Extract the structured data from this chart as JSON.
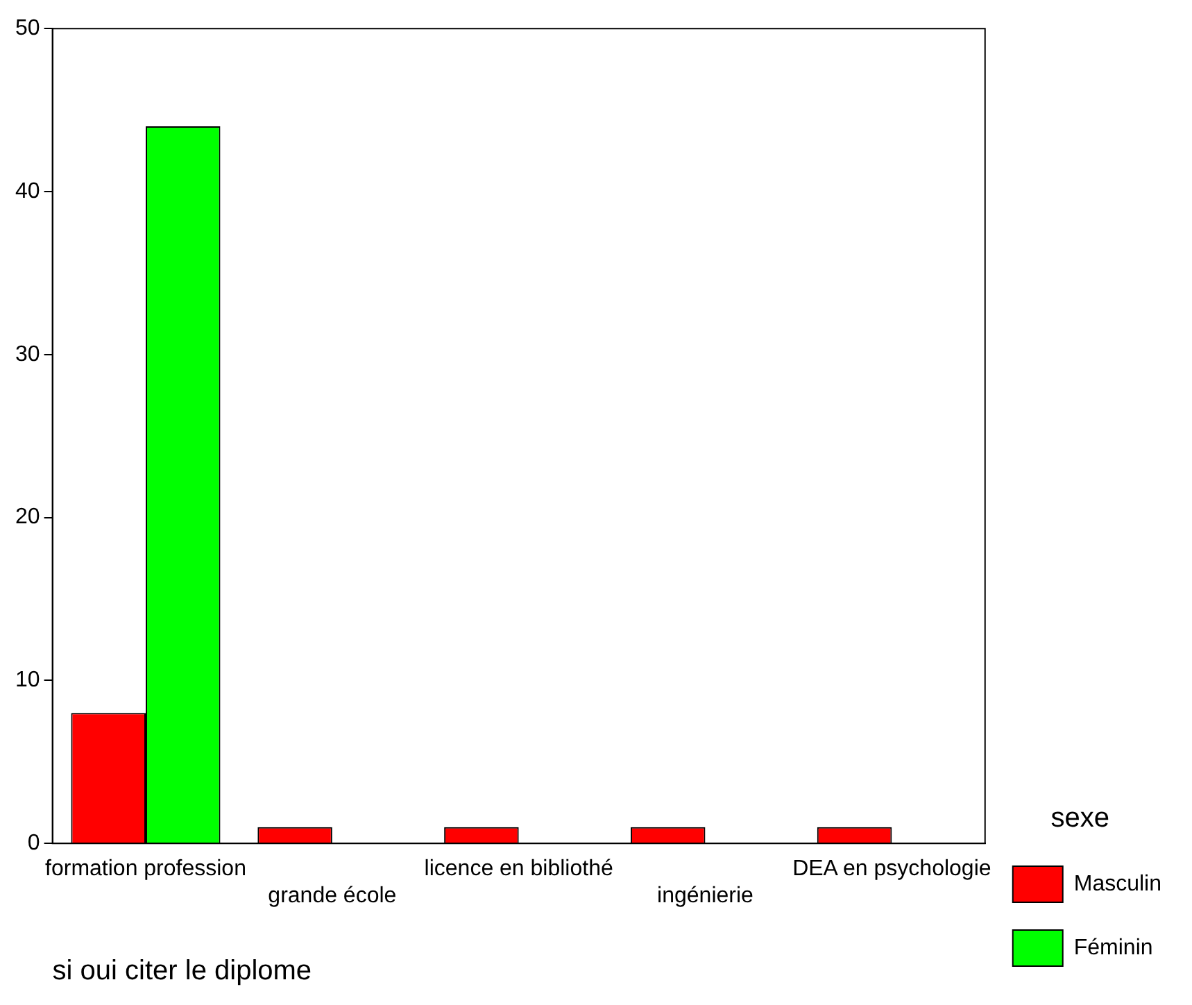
{
  "chart_data": {
    "type": "bar",
    "xlabel": "si oui citer le diplome",
    "legend_title": "sexe",
    "categories": [
      "formation profession",
      "grande école",
      "licence en bibliothé",
      "ingénierie",
      "DEA en psychologie"
    ],
    "series": [
      {
        "name": "Masculin",
        "color": "#ff0000",
        "values": [
          8,
          1,
          1,
          1,
          1
        ]
      },
      {
        "name": "Féminin",
        "color": "#00ff00",
        "values": [
          44,
          0,
          0,
          0,
          0
        ]
      }
    ],
    "ylim": [
      0,
      50
    ],
    "yticks": [
      0,
      10,
      20,
      30,
      40,
      50
    ],
    "grid": false,
    "legend": "right"
  }
}
